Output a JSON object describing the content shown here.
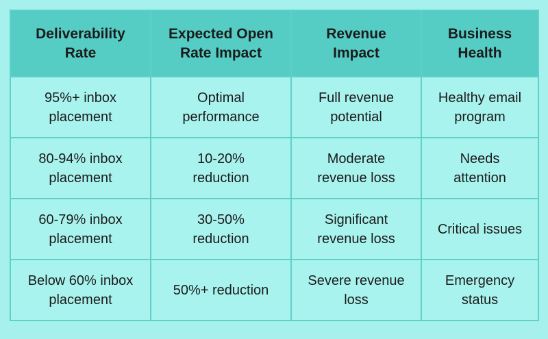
{
  "table": {
    "header": [
      [
        "Deliverability",
        "Rate"
      ],
      [
        "Expected Open",
        "Rate Impact"
      ],
      [
        "Revenue",
        "Impact"
      ],
      [
        "Business",
        "Health"
      ]
    ],
    "rows": [
      [
        [
          "95%+ inbox",
          "placement"
        ],
        [
          "Optimal",
          "performance"
        ],
        [
          "Full revenue",
          "potential"
        ],
        [
          "Healthy email",
          "program"
        ]
      ],
      [
        [
          "80-94% inbox",
          "placement"
        ],
        [
          "10-20%",
          "reduction"
        ],
        [
          "Moderate",
          "revenue loss"
        ],
        [
          "Needs",
          "attention"
        ]
      ],
      [
        [
          "60-79% inbox",
          "placement"
        ],
        [
          "30-50%",
          "reduction"
        ],
        [
          "Significant",
          "revenue loss"
        ],
        [
          "Critical issues"
        ]
      ],
      [
        [
          "Below 60% inbox",
          "placement"
        ],
        [
          "50%+ reduction"
        ],
        [
          "Severe revenue",
          "loss"
        ],
        [
          "Emergency",
          "status"
        ]
      ]
    ]
  }
}
